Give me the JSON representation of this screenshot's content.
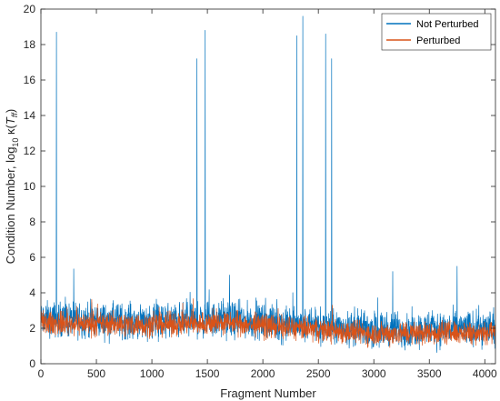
{
  "chart_data": {
    "type": "line",
    "xlabel": "Fragment Number",
    "ylabel_prefix": "Condition Number, log",
    "ylabel_sub": "10",
    "ylabel_kappa": " κ(",
    "ylabel_T": "T",
    "ylabel_Tsub": "ff",
    "ylabel_suffix": ")",
    "xlim": [
      0,
      4096
    ],
    "ylim": [
      0,
      20
    ],
    "xticks": [
      0,
      500,
      1000,
      1500,
      2000,
      2500,
      3000,
      3500,
      4000
    ],
    "yticks": [
      0,
      2,
      4,
      6,
      8,
      10,
      12,
      14,
      16,
      18,
      20
    ],
    "xtick_labels": [
      "0",
      "500",
      "1000",
      "1500",
      "2000",
      "2500",
      "3000",
      "3500",
      "4000"
    ],
    "ytick_labels": [
      "0",
      "2",
      "4",
      "6",
      "8",
      "10",
      "12",
      "14",
      "16",
      "18",
      "20"
    ],
    "legend_position": "top-right",
    "series": [
      {
        "name": "Not Perturbed",
        "color": "#0072BD",
        "baseline_profile": {
          "x": [
            0,
            1000,
            1700,
            2500,
            3000,
            4096
          ],
          "mean": [
            2.5,
            2.4,
            2.5,
            2.1,
            1.9,
            2.0
          ],
          "noise": 0.9
        },
        "spikes": [
          {
            "x": 140,
            "y": 18.7
          },
          {
            "x": 1405,
            "y": 17.2
          },
          {
            "x": 1480,
            "y": 18.8
          },
          {
            "x": 2305,
            "y": 18.5
          },
          {
            "x": 2360,
            "y": 19.6
          },
          {
            "x": 2565,
            "y": 18.6
          },
          {
            "x": 2620,
            "y": 17.2
          },
          {
            "x": 3170,
            "y": 5.2
          },
          {
            "x": 3750,
            "y": 5.5
          },
          {
            "x": 1700,
            "y": 5.0
          }
        ]
      },
      {
        "name": "Perturbed",
        "color": "#D95319",
        "baseline_profile": {
          "x": [
            0,
            1000,
            1700,
            2500,
            3000,
            4096
          ],
          "mean": [
            2.3,
            2.2,
            2.3,
            1.9,
            1.7,
            1.8
          ],
          "noise": 0.6
        },
        "spikes": []
      }
    ]
  }
}
